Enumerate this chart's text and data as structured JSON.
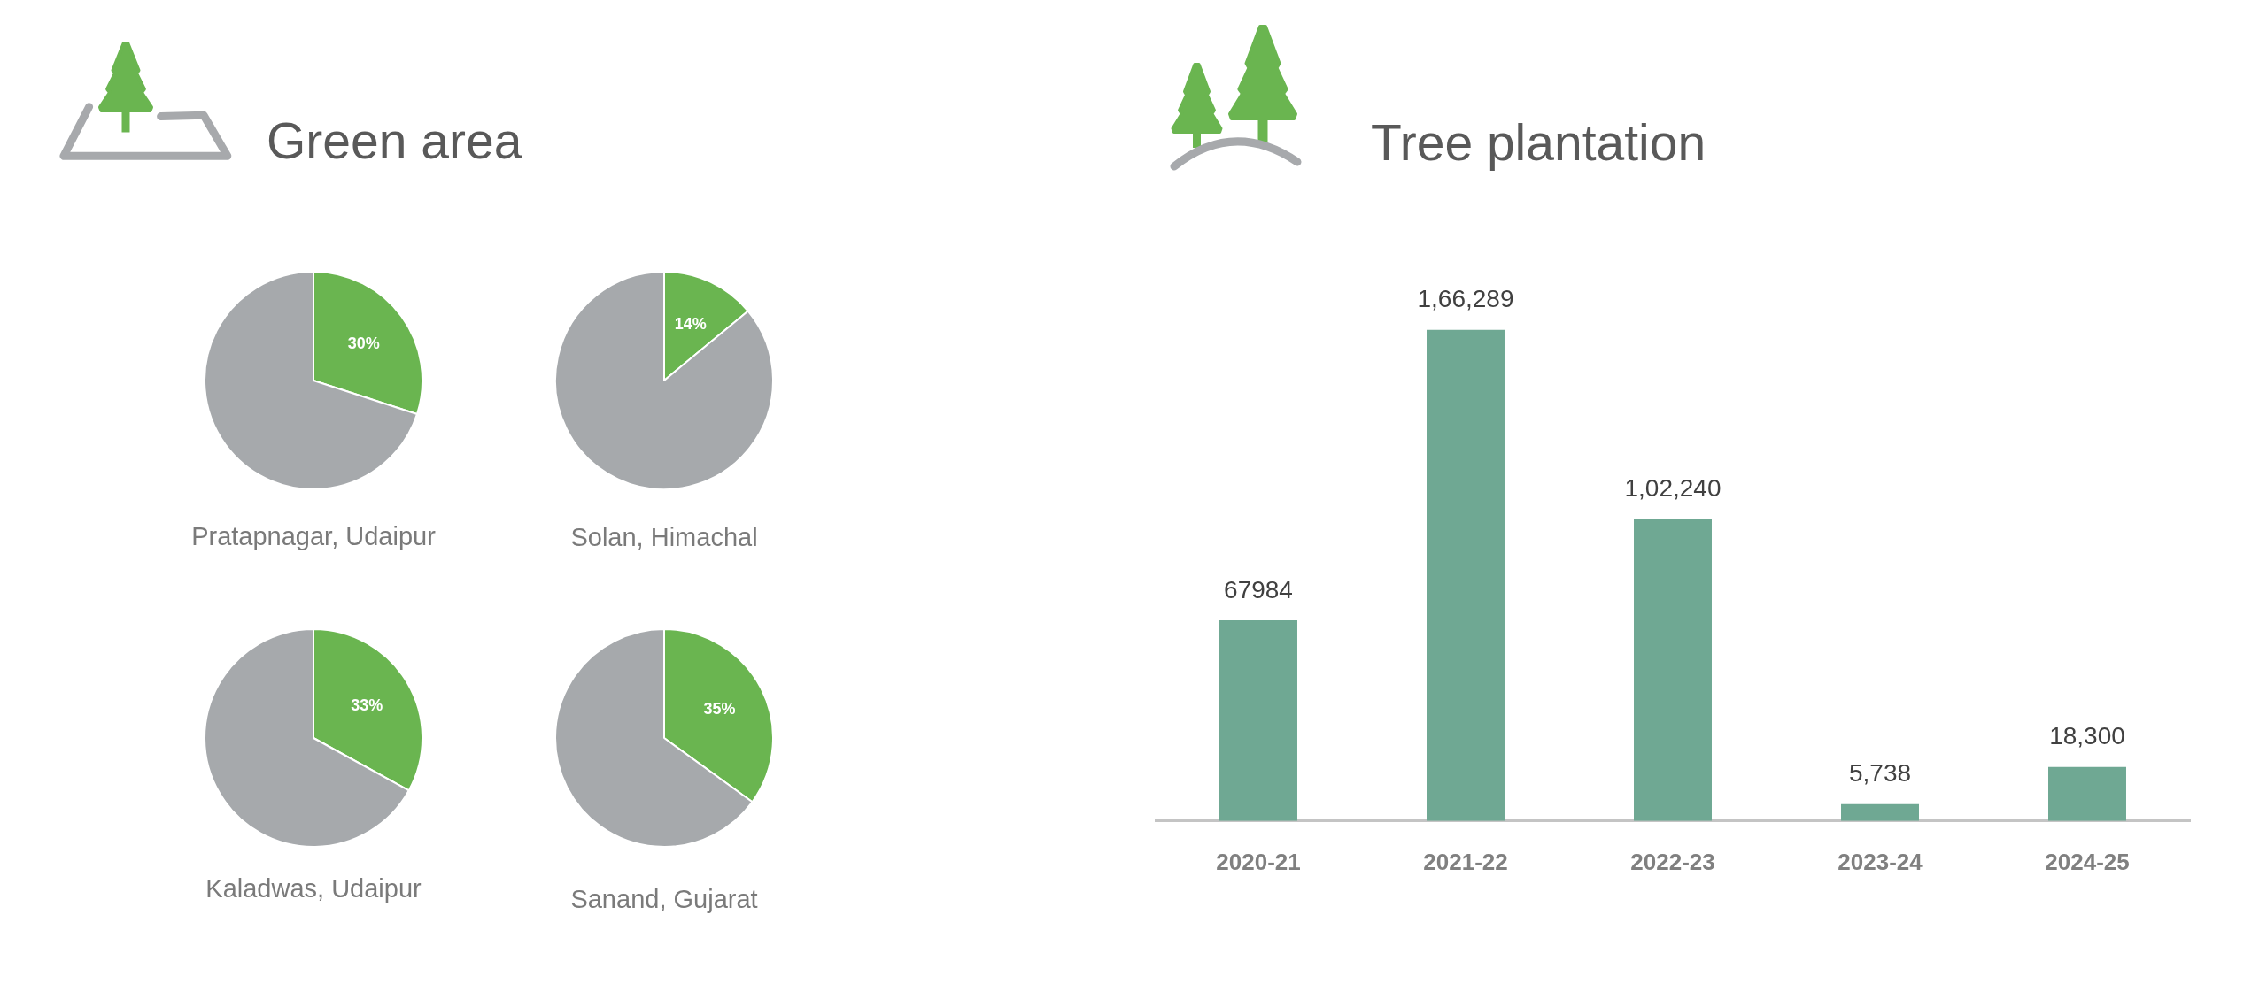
{
  "chart_data": [
    {
      "type": "pie",
      "title": "Green area",
      "xlabel": "Pratapnagar, Udaipur",
      "categories": [
        null,
        null
      ],
      "values": [
        30,
        70
      ],
      "colors": [
        "#6ab550",
        "#a6a9ac"
      ],
      "value_labels": [
        "30%",
        null
      ]
    },
    {
      "type": "pie",
      "xlabel": "Solan, Himachal",
      "categories": [
        null,
        null
      ],
      "values": [
        14,
        86
      ],
      "colors": [
        "#6ab550",
        "#a6a9ac"
      ],
      "value_labels": [
        "14%",
        null
      ]
    },
    {
      "type": "pie",
      "xlabel": "Kaladwas, Udaipur",
      "categories": [
        null,
        null
      ],
      "values": [
        33,
        67
      ],
      "colors": [
        "#6ab550",
        "#a6a9ac"
      ],
      "value_labels": [
        "33%",
        null
      ]
    },
    {
      "type": "pie",
      "xlabel": "Sanand, Gujarat",
      "categories": [
        null,
        null
      ],
      "values": [
        35,
        65
      ],
      "colors": [
        "#6ab550",
        "#a6a9ac"
      ],
      "value_labels": [
        "35%",
        null
      ]
    },
    {
      "type": "bar",
      "title": "Tree plantation",
      "categories": [
        "2020-21",
        "2021-22",
        "2022-23",
        "2023-24",
        "2024-25"
      ],
      "values": [
        67984,
        166289,
        102240,
        5738,
        18300
      ],
      "color": "#6fa893",
      "value_labels": [
        "67984",
        "1,66,289",
        "1,02,240",
        "5,738",
        "18,300"
      ],
      "tick_labels": "x"
    }
  ]
}
